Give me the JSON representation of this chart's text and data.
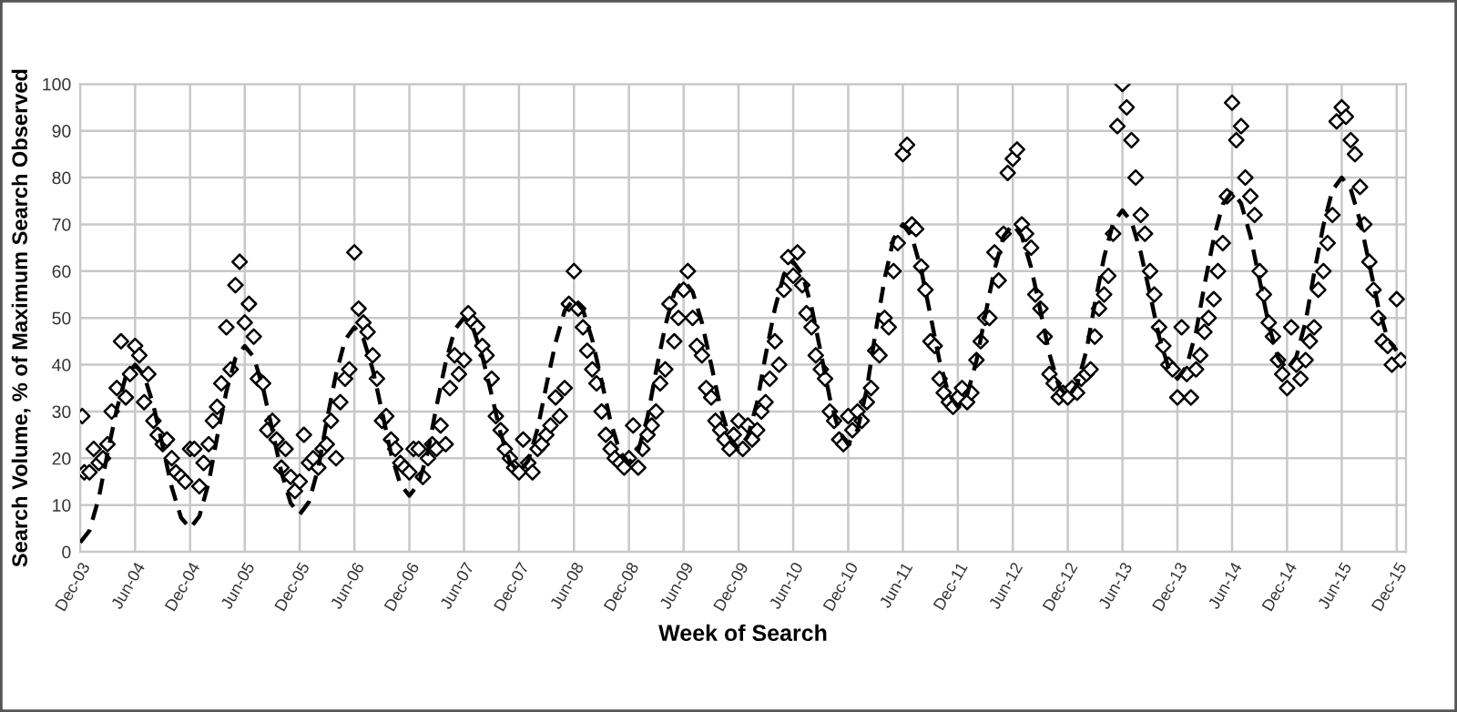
{
  "chart_data": {
    "type": "scatter",
    "xlabel": "Week of Search",
    "ylabel": "Search Volume, % of Maximum Search Observed",
    "xlim": [
      "2003-12-01",
      "2016-01-01"
    ],
    "ylim": [
      0,
      100
    ],
    "yticks": [
      0,
      10,
      20,
      30,
      40,
      50,
      60,
      70,
      80,
      90,
      100
    ],
    "xticks": [
      {
        "value": "2003-12-01",
        "label": "Dec-03"
      },
      {
        "value": "2004-06-01",
        "label": "Jun-04"
      },
      {
        "value": "2004-12-01",
        "label": "Dec-04"
      },
      {
        "value": "2005-06-01",
        "label": "Jun-05"
      },
      {
        "value": "2005-12-01",
        "label": "Dec-05"
      },
      {
        "value": "2006-06-01",
        "label": "Jun-06"
      },
      {
        "value": "2006-12-01",
        "label": "Dec-06"
      },
      {
        "value": "2007-06-01",
        "label": "Jun-07"
      },
      {
        "value": "2007-12-01",
        "label": "Dec-07"
      },
      {
        "value": "2008-06-01",
        "label": "Jun-08"
      },
      {
        "value": "2008-12-01",
        "label": "Dec-08"
      },
      {
        "value": "2009-06-01",
        "label": "Jun-09"
      },
      {
        "value": "2009-12-01",
        "label": "Dec-09"
      },
      {
        "value": "2010-06-01",
        "label": "Jun-10"
      },
      {
        "value": "2010-12-01",
        "label": "Dec-10"
      },
      {
        "value": "2011-06-01",
        "label": "Jun-11"
      },
      {
        "value": "2011-12-01",
        "label": "Dec-11"
      },
      {
        "value": "2012-06-01",
        "label": "Jun-12"
      },
      {
        "value": "2012-12-01",
        "label": "Dec-12"
      },
      {
        "value": "2013-06-01",
        "label": "Jun-13"
      },
      {
        "value": "2013-12-01",
        "label": "Dec-13"
      },
      {
        "value": "2014-06-01",
        "label": "Jun-14"
      },
      {
        "value": "2014-12-01",
        "label": "Dec-14"
      },
      {
        "value": "2015-06-01",
        "label": "Jun-15"
      },
      {
        "value": "2015-12-01",
        "label": "Dec-15"
      }
    ],
    "grid": true,
    "legend": false,
    "series": [
      {
        "marker": "diamond",
        "color": "#000000",
        "x": [
          "2003-12-08",
          "2003-12-15",
          "2004-01-01",
          "2004-01-15",
          "2004-02-01",
          "2004-02-15",
          "2004-03-01",
          "2004-03-15",
          "2004-04-01",
          "2004-04-15",
          "2004-05-01",
          "2004-05-15",
          "2004-06-01",
          "2004-06-15",
          "2004-07-01",
          "2004-07-15",
          "2004-08-01",
          "2004-08-15",
          "2004-09-01",
          "2004-09-15",
          "2004-10-01",
          "2004-10-15",
          "2004-11-01",
          "2004-11-15",
          "2004-12-01",
          "2004-12-15",
          "2005-01-01",
          "2005-01-15",
          "2005-02-01",
          "2005-02-15",
          "2005-03-01",
          "2005-03-15",
          "2005-04-01",
          "2005-04-15",
          "2005-05-01",
          "2005-05-15",
          "2005-06-01",
          "2005-06-15",
          "2005-07-01",
          "2005-07-15",
          "2005-08-01",
          "2005-08-15",
          "2005-09-01",
          "2005-09-15",
          "2005-10-01",
          "2005-10-15",
          "2005-11-01",
          "2005-11-15",
          "2005-12-01",
          "2005-12-15",
          "2006-01-01",
          "2006-01-15",
          "2006-02-01",
          "2006-02-15",
          "2006-03-01",
          "2006-03-15",
          "2006-04-01",
          "2006-04-15",
          "2006-05-01",
          "2006-05-15",
          "2006-06-01",
          "2006-06-15",
          "2006-07-01",
          "2006-07-15",
          "2006-08-01",
          "2006-08-15",
          "2006-09-01",
          "2006-09-15",
          "2006-10-01",
          "2006-10-15",
          "2006-11-01",
          "2006-11-15",
          "2006-12-01",
          "2006-12-15",
          "2007-01-01",
          "2007-01-15",
          "2007-02-01",
          "2007-02-15",
          "2007-03-01",
          "2007-03-15",
          "2007-04-01",
          "2007-04-15",
          "2007-05-01",
          "2007-05-15",
          "2007-06-01",
          "2007-06-15",
          "2007-07-01",
          "2007-07-15",
          "2007-08-01",
          "2007-08-15",
          "2007-09-01",
          "2007-09-15",
          "2007-10-01",
          "2007-10-15",
          "2007-11-01",
          "2007-11-15",
          "2007-12-01",
          "2007-12-15",
          "2008-01-01",
          "2008-01-15",
          "2008-02-01",
          "2008-02-15",
          "2008-03-01",
          "2008-03-15",
          "2008-04-01",
          "2008-04-15",
          "2008-05-01",
          "2008-05-15",
          "2008-06-01",
          "2008-06-15",
          "2008-07-01",
          "2008-07-15",
          "2008-08-01",
          "2008-08-15",
          "2008-09-01",
          "2008-09-15",
          "2008-10-01",
          "2008-10-15",
          "2008-11-01",
          "2008-11-15",
          "2008-12-01",
          "2008-12-15",
          "2009-01-01",
          "2009-01-15",
          "2009-02-01",
          "2009-02-15",
          "2009-03-01",
          "2009-03-15",
          "2009-04-01",
          "2009-04-15",
          "2009-05-01",
          "2009-05-15",
          "2009-06-01",
          "2009-06-15",
          "2009-07-01",
          "2009-07-15",
          "2009-08-01",
          "2009-08-15",
          "2009-09-01",
          "2009-09-15",
          "2009-10-01",
          "2009-10-15",
          "2009-11-01",
          "2009-11-15",
          "2009-12-01",
          "2009-12-15",
          "2010-01-01",
          "2010-01-15",
          "2010-02-01",
          "2010-02-15",
          "2010-03-01",
          "2010-03-15",
          "2010-04-01",
          "2010-04-15",
          "2010-05-01",
          "2010-05-15",
          "2010-06-01",
          "2010-06-15",
          "2010-07-01",
          "2010-07-15",
          "2010-08-01",
          "2010-08-15",
          "2010-09-01",
          "2010-09-15",
          "2010-10-01",
          "2010-10-15",
          "2010-11-01",
          "2010-11-15",
          "2010-12-01",
          "2010-12-15",
          "2011-01-01",
          "2011-01-15",
          "2011-02-01",
          "2011-02-15",
          "2011-03-01",
          "2011-03-15",
          "2011-04-01",
          "2011-04-15",
          "2011-05-01",
          "2011-05-15",
          "2011-06-01",
          "2011-06-15",
          "2011-07-01",
          "2011-07-15",
          "2011-08-01",
          "2011-08-15",
          "2011-09-01",
          "2011-09-15",
          "2011-10-01",
          "2011-10-15",
          "2011-11-01",
          "2011-11-15",
          "2011-12-01",
          "2011-12-15",
          "2012-01-01",
          "2012-01-15",
          "2012-02-01",
          "2012-02-15",
          "2012-03-01",
          "2012-03-15",
          "2012-04-01",
          "2012-04-15",
          "2012-05-01",
          "2012-05-15",
          "2012-06-01",
          "2012-06-15",
          "2012-07-01",
          "2012-07-15",
          "2012-08-01",
          "2012-08-15",
          "2012-09-01",
          "2012-09-15",
          "2012-10-01",
          "2012-10-15",
          "2012-11-01",
          "2012-11-15",
          "2012-12-01",
          "2012-12-15",
          "2013-01-01",
          "2013-01-15",
          "2013-02-01",
          "2013-02-15",
          "2013-03-01",
          "2013-03-15",
          "2013-04-01",
          "2013-04-15",
          "2013-05-01",
          "2013-05-15",
          "2013-06-01",
          "2013-06-15",
          "2013-07-01",
          "2013-07-15",
          "2013-08-01",
          "2013-08-15",
          "2013-09-01",
          "2013-09-15",
          "2013-10-01",
          "2013-10-15",
          "2013-11-01",
          "2013-11-15",
          "2013-12-01",
          "2013-12-15",
          "2014-01-01",
          "2014-01-15",
          "2014-02-01",
          "2014-02-15",
          "2014-03-01",
          "2014-03-15",
          "2014-04-01",
          "2014-04-15",
          "2014-05-01",
          "2014-05-15",
          "2014-06-01",
          "2014-06-15",
          "2014-07-01",
          "2014-07-15",
          "2014-08-01",
          "2014-08-15",
          "2014-09-01",
          "2014-09-15",
          "2014-10-01",
          "2014-10-15",
          "2014-11-01",
          "2014-11-15",
          "2014-12-01",
          "2014-12-15",
          "2015-01-01",
          "2015-01-15",
          "2015-02-01",
          "2015-02-15",
          "2015-03-01",
          "2015-03-15",
          "2015-04-01",
          "2015-04-15",
          "2015-05-01",
          "2015-05-15",
          "2015-06-01",
          "2015-06-15",
          "2015-07-01",
          "2015-07-15",
          "2015-08-01",
          "2015-08-15",
          "2015-09-01",
          "2015-09-15",
          "2015-10-01",
          "2015-10-15",
          "2015-11-01",
          "2015-11-15",
          "2015-12-01",
          "2015-12-15"
        ],
        "values": [
          29,
          17,
          17,
          22,
          19,
          20,
          23,
          30,
          35,
          45,
          33,
          38,
          44,
          42,
          32,
          38,
          28,
          25,
          23,
          24,
          20,
          17,
          16,
          15,
          22,
          22,
          14,
          19,
          23,
          28,
          31,
          36,
          48,
          39,
          57,
          62,
          49,
          53,
          46,
          37,
          36,
          26,
          28,
          24,
          18,
          22,
          16,
          13,
          15,
          25,
          19,
          20,
          18,
          22,
          23,
          28,
          20,
          32,
          37,
          39,
          64,
          52,
          49,
          47,
          42,
          37,
          28,
          29,
          24,
          22,
          19,
          18,
          17,
          22,
          22,
          16,
          20,
          23,
          22,
          27,
          23,
          35,
          42,
          38,
          41,
          51,
          49,
          48,
          44,
          42,
          37,
          29,
          26,
          22,
          20,
          18,
          17,
          24,
          19,
          17,
          22,
          23,
          25,
          27,
          33,
          29,
          35,
          53,
          60,
          52,
          48,
          43,
          39,
          36,
          30,
          25,
          22,
          20,
          19,
          18,
          20,
          27,
          18,
          22,
          25,
          27,
          30,
          36,
          39,
          53,
          45,
          50,
          56,
          60,
          50,
          44,
          42,
          35,
          33,
          28,
          26,
          24,
          22,
          25,
          28,
          22,
          27,
          24,
          26,
          30,
          32,
          37,
          45,
          40,
          56,
          63,
          59,
          64,
          57,
          51,
          48,
          42,
          39,
          37,
          30,
          28,
          24,
          23,
          29,
          26,
          30,
          28,
          32,
          35,
          43,
          42,
          50,
          48,
          60,
          66,
          85,
          87,
          70,
          69,
          61,
          56,
          45,
          44,
          37,
          34,
          32,
          31,
          33,
          35,
          32,
          34,
          41,
          45,
          50,
          50,
          64,
          58,
          68,
          81,
          84,
          86,
          70,
          68,
          65,
          55,
          52,
          46,
          38,
          36,
          33,
          34,
          33,
          35,
          34,
          37,
          38,
          39,
          46,
          52,
          55,
          59,
          68,
          91,
          100,
          95,
          88,
          80,
          72,
          68,
          60,
          55,
          48,
          44,
          40,
          39,
          33,
          48,
          38,
          33,
          39,
          42,
          47,
          50,
          54,
          60,
          66,
          76,
          96,
          88,
          91,
          80,
          76,
          72,
          60,
          55,
          49,
          46,
          41,
          38,
          35,
          48,
          40,
          37,
          41,
          45,
          48,
          56,
          60,
          66,
          72,
          92,
          95,
          93,
          88,
          85,
          78,
          70,
          62,
          56,
          50,
          45,
          44,
          40,
          54,
          41
        ]
      },
      {
        "type": "line",
        "line_style": "dashed",
        "marker": "none",
        "color": "#000000",
        "x": [
          "2003-12-01",
          "2004-01-01",
          "2004-02-01",
          "2004-03-01",
          "2004-04-01",
          "2004-05-01",
          "2004-06-01",
          "2004-07-01",
          "2004-08-01",
          "2004-09-01",
          "2004-10-01",
          "2004-11-01",
          "2004-12-01",
          "2005-01-01",
          "2005-02-01",
          "2005-03-01",
          "2005-04-01",
          "2005-05-01",
          "2005-06-01",
          "2005-07-01",
          "2005-08-01",
          "2005-09-01",
          "2005-10-01",
          "2005-11-01",
          "2005-12-01",
          "2006-01-01",
          "2006-02-01",
          "2006-03-01",
          "2006-04-01",
          "2006-05-01",
          "2006-06-01",
          "2006-07-01",
          "2006-08-01",
          "2006-09-01",
          "2006-10-01",
          "2006-11-01",
          "2006-12-01",
          "2007-01-01",
          "2007-02-01",
          "2007-03-01",
          "2007-04-01",
          "2007-05-01",
          "2007-06-01",
          "2007-07-01",
          "2007-08-01",
          "2007-09-01",
          "2007-10-01",
          "2007-11-01",
          "2007-12-01",
          "2008-01-01",
          "2008-02-01",
          "2008-03-01",
          "2008-04-01",
          "2008-05-01",
          "2008-06-01",
          "2008-07-01",
          "2008-08-01",
          "2008-09-01",
          "2008-10-01",
          "2008-11-01",
          "2008-12-01",
          "2009-01-01",
          "2009-02-01",
          "2009-03-01",
          "2009-04-01",
          "2009-05-01",
          "2009-06-01",
          "2009-07-01",
          "2009-08-01",
          "2009-09-01",
          "2009-10-01",
          "2009-11-01",
          "2009-12-01",
          "2010-01-01",
          "2010-02-01",
          "2010-03-01",
          "2010-04-01",
          "2010-05-01",
          "2010-06-01",
          "2010-07-01",
          "2010-08-01",
          "2010-09-01",
          "2010-10-01",
          "2010-11-01",
          "2010-12-01",
          "2011-01-01",
          "2011-02-01",
          "2011-03-01",
          "2011-04-01",
          "2011-05-01",
          "2011-06-01",
          "2011-07-01",
          "2011-08-01",
          "2011-09-01",
          "2011-10-01",
          "2011-11-01",
          "2011-12-01",
          "2012-01-01",
          "2012-02-01",
          "2012-03-01",
          "2012-04-01",
          "2012-05-01",
          "2012-06-01",
          "2012-07-01",
          "2012-08-01",
          "2012-09-01",
          "2012-10-01",
          "2012-11-01",
          "2012-12-01",
          "2013-01-01",
          "2013-02-01",
          "2013-03-01",
          "2013-04-01",
          "2013-05-01",
          "2013-06-01",
          "2013-07-01",
          "2013-08-01",
          "2013-09-01",
          "2013-10-01",
          "2013-11-01",
          "2013-12-01",
          "2014-01-01",
          "2014-02-01",
          "2014-03-01",
          "2014-04-01",
          "2014-05-01",
          "2014-06-01",
          "2014-07-01",
          "2014-08-01",
          "2014-09-01",
          "2014-10-01",
          "2014-11-01",
          "2014-12-01",
          "2015-01-01",
          "2015-02-01",
          "2015-03-01",
          "2015-04-01",
          "2015-05-01",
          "2015-06-01",
          "2015-07-01",
          "2015-08-01",
          "2015-09-01",
          "2015-10-01",
          "2015-11-01",
          "2015-12-01"
        ],
        "values": [
          2,
          4.5,
          11.5,
          21,
          30.5,
          37.5,
          40,
          37.7,
          31.3,
          22.5,
          13.8,
          7.3,
          5,
          7.6,
          14.8,
          24.5,
          34.3,
          41.4,
          44,
          41.6,
          35,
          26,
          17,
          10.4,
          8,
          10.7,
          18,
          28,
          38,
          45.3,
          48,
          45.6,
          39,
          30,
          21,
          14.4,
          12,
          14.5,
          21.5,
          31,
          40.5,
          47.5,
          50,
          47.8,
          41.8,
          33.5,
          25.3,
          19.2,
          17,
          19.5,
          26.3,
          35.5,
          44.8,
          51.5,
          54,
          51.7,
          45.3,
          36.5,
          27.8,
          21.3,
          19,
          21.6,
          28.8,
          38.5,
          48.3,
          55.4,
          58,
          55.6,
          49,
          40,
          31,
          24.4,
          22,
          24.7,
          32,
          42,
          52,
          59.3,
          62,
          59.4,
          52.3,
          42.5,
          32.8,
          25.6,
          23,
          26.1,
          34.8,
          46.5,
          58.3,
          66.9,
          70,
          67.4,
          60.3,
          50.5,
          40.8,
          33.6,
          31,
          33.6,
          40.8,
          50.5,
          60.3,
          67.4,
          70,
          67.5,
          60.8,
          51.5,
          42.3,
          35.5,
          33,
          35.7,
          43,
          53,
          63,
          70.3,
          73,
          70.6,
          64,
          55,
          46,
          39.4,
          37,
          39.7,
          47,
          57,
          67,
          74.3,
          77,
          74.5,
          67.5,
          58,
          48.5,
          41.5,
          39,
          41.7,
          49.3,
          59.5,
          69.8,
          77.3,
          80,
          77.5,
          70.8,
          61.5,
          52.3,
          45.5,
          43
        ]
      }
    ]
  }
}
